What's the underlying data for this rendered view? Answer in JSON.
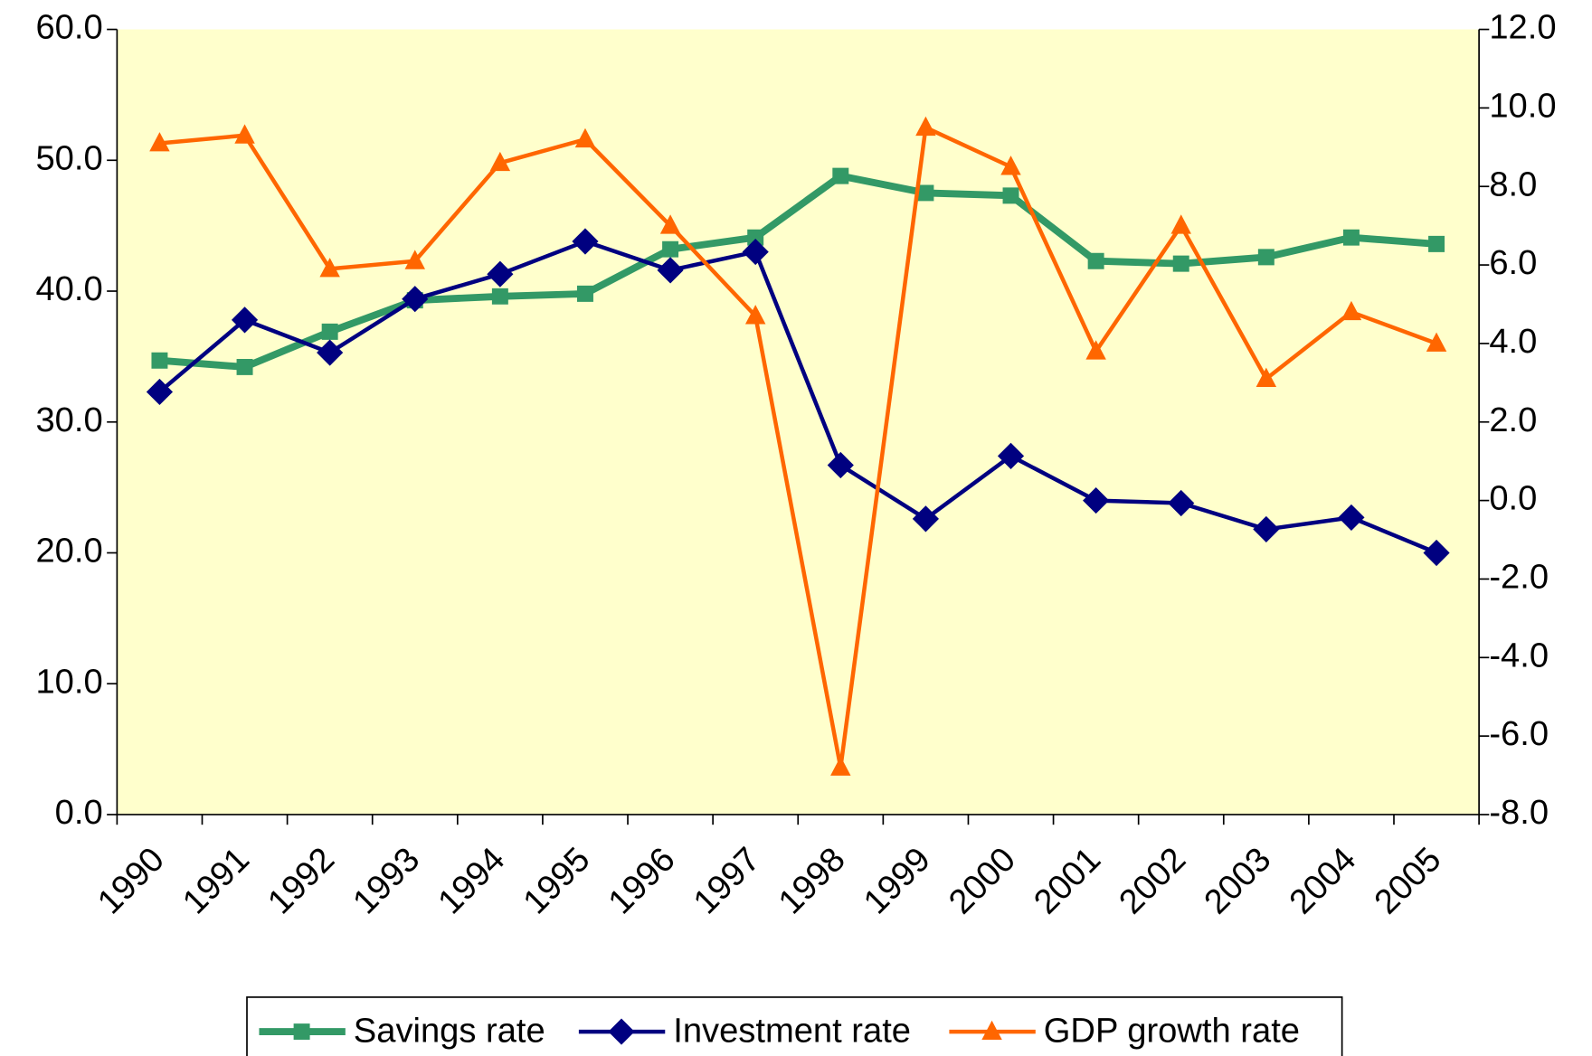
{
  "chart_data": {
    "type": "line",
    "categories": [
      "1990",
      "1991",
      "1992",
      "1993",
      "1994",
      "1995",
      "1996",
      "1997",
      "1998",
      "1999",
      "2000",
      "2001",
      "2002",
      "2003",
      "2004",
      "2005"
    ],
    "series": [
      {
        "name": "Savings rate",
        "color": "#339966",
        "marker": "square",
        "values": [
          34.7,
          34.2,
          36.9,
          39.3,
          39.6,
          39.8,
          43.2,
          44.1,
          48.8,
          47.5,
          47.3,
          42.3,
          42.1,
          42.6,
          44.1,
          43.6
        ]
      },
      {
        "name": "Investment rate",
        "color": "#000080",
        "marker": "diamond",
        "values": [
          32.3,
          37.8,
          35.3,
          39.4,
          41.3,
          43.8,
          41.6,
          43.0,
          26.7,
          22.6,
          27.4,
          24.0,
          23.8,
          21.8,
          22.7,
          20.0
        ]
      },
      {
        "name": "GDP growth rate",
        "color": "#ff6600",
        "marker": "triangle",
        "axis": "y2",
        "values": [
          9.1,
          9.3,
          5.9,
          6.1,
          8.6,
          9.2,
          7.0,
          4.7,
          -6.8,
          9.5,
          8.5,
          3.8,
          7.0,
          3.1,
          4.8,
          4.0
        ]
      }
    ],
    "ylim": [
      0,
      60
    ],
    "yticks": [
      {
        "value": 0,
        "label": "0.0"
      },
      {
        "value": 10,
        "label": "10.0"
      },
      {
        "value": 20,
        "label": "20.0"
      },
      {
        "value": 30,
        "label": "30.0"
      },
      {
        "value": 40,
        "label": "40.0"
      },
      {
        "value": 50,
        "label": "50.0"
      },
      {
        "value": 60,
        "label": "60.0"
      }
    ],
    "y2lim": [
      -8,
      12
    ],
    "y2ticks": [
      {
        "value": -8,
        "label": "-8.0"
      },
      {
        "value": -6,
        "label": "-6.0"
      },
      {
        "value": -4,
        "label": "-4.0"
      },
      {
        "value": -2,
        "label": "-2.0"
      },
      {
        "value": 0,
        "label": "0.0"
      },
      {
        "value": 2,
        "label": "2.0"
      },
      {
        "value": 4,
        "label": "4.0"
      },
      {
        "value": 6,
        "label": "6.0"
      },
      {
        "value": 8,
        "label": "8.0"
      },
      {
        "value": 10,
        "label": "10.0"
      },
      {
        "value": 12,
        "label": "12.0"
      }
    ],
    "plot_background": "#ffffcc",
    "legend": "bottom"
  }
}
